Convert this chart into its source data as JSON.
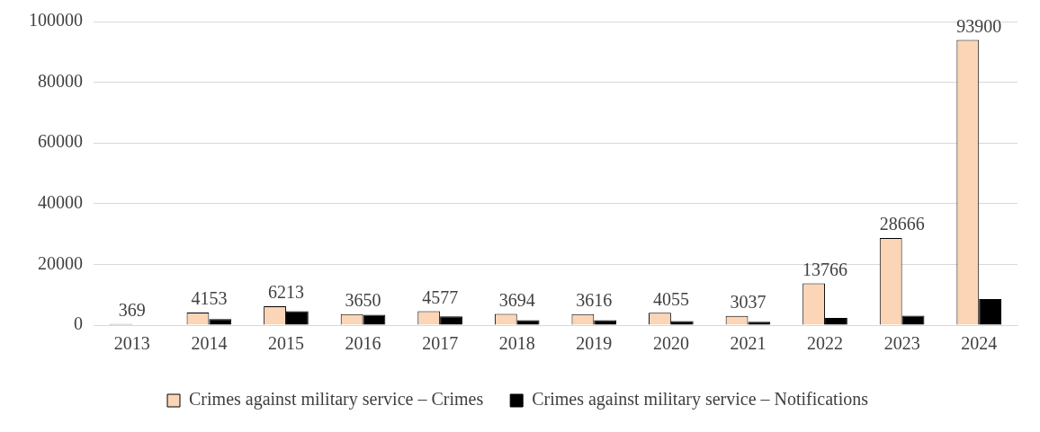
{
  "chart_data": {
    "type": "bar",
    "categories": [
      "2013",
      "2014",
      "2015",
      "2016",
      "2017",
      "2018",
      "2019",
      "2020",
      "2021",
      "2022",
      "2023",
      "2024"
    ],
    "series": [
      {
        "name": "Crimes against military service – Crimes",
        "color": "#fbd5b5",
        "values": [
          369,
          4153,
          6213,
          3650,
          4577,
          3694,
          3616,
          4055,
          3037,
          13766,
          28666,
          93900
        ],
        "value_labels": [
          "369",
          "4153",
          "6213",
          "3650",
          "4577",
          "3694",
          "3616",
          "4055",
          "3037",
          "13766",
          "28666",
          "93900"
        ]
      },
      {
        "name": "Crimes against military service – Notifications",
        "color": "#000000",
        "values": [
          0,
          2000,
          4600,
          3400,
          2900,
          1600,
          1600,
          1300,
          1100,
          2400,
          3100,
          8600
        ]
      }
    ],
    "ylim": [
      0,
      100000
    ],
    "yticks": [
      0,
      20000,
      40000,
      60000,
      80000,
      100000
    ],
    "grid": "y",
    "legend": "bottom"
  }
}
